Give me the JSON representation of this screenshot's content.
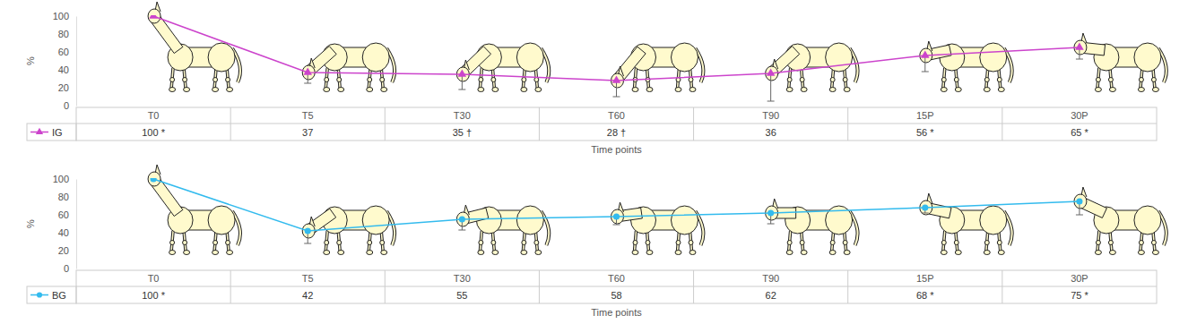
{
  "chart_data": [
    {
      "type": "line",
      "xlabel": "Time points",
      "ylabel": "%",
      "categories": [
        "T0",
        "T5",
        "T30",
        "T60",
        "T90",
        "15P",
        "30P"
      ],
      "series": [
        {
          "name": "IG",
          "color": "#cc44cc",
          "marker": "triangle",
          "values": [
            100,
            37,
            35,
            28,
            36,
            56,
            65
          ],
          "error": [
            null,
            12,
            17,
            18,
            31,
            18,
            13
          ],
          "value_labels": [
            "100 *",
            "37",
            "35 †",
            "28 †",
            "36",
            "56 *",
            "65 *"
          ]
        }
      ],
      "data_labels": true,
      "ylim": [
        0,
        100
      ],
      "yticks": [
        0,
        20,
        40,
        60,
        80,
        100
      ]
    },
    {
      "type": "line",
      "xlabel": "Time points",
      "ylabel": "%",
      "categories": [
        "T0",
        "T5",
        "T30",
        "T60",
        "T90",
        "15P",
        "30P"
      ],
      "series": [
        {
          "name": "BG",
          "color": "#33bbee",
          "marker": "circle",
          "values": [
            100,
            42,
            55,
            58,
            62,
            68,
            75
          ],
          "error": [
            null,
            14,
            12,
            9,
            12,
            6,
            15
          ],
          "value_labels": [
            "100 *",
            "42",
            "55",
            "58",
            "62",
            "68 *",
            "75 *"
          ]
        }
      ],
      "data_labels": true,
      "ylim": [
        0,
        100
      ],
      "yticks": [
        0,
        20,
        40,
        60,
        80,
        100
      ]
    }
  ]
}
